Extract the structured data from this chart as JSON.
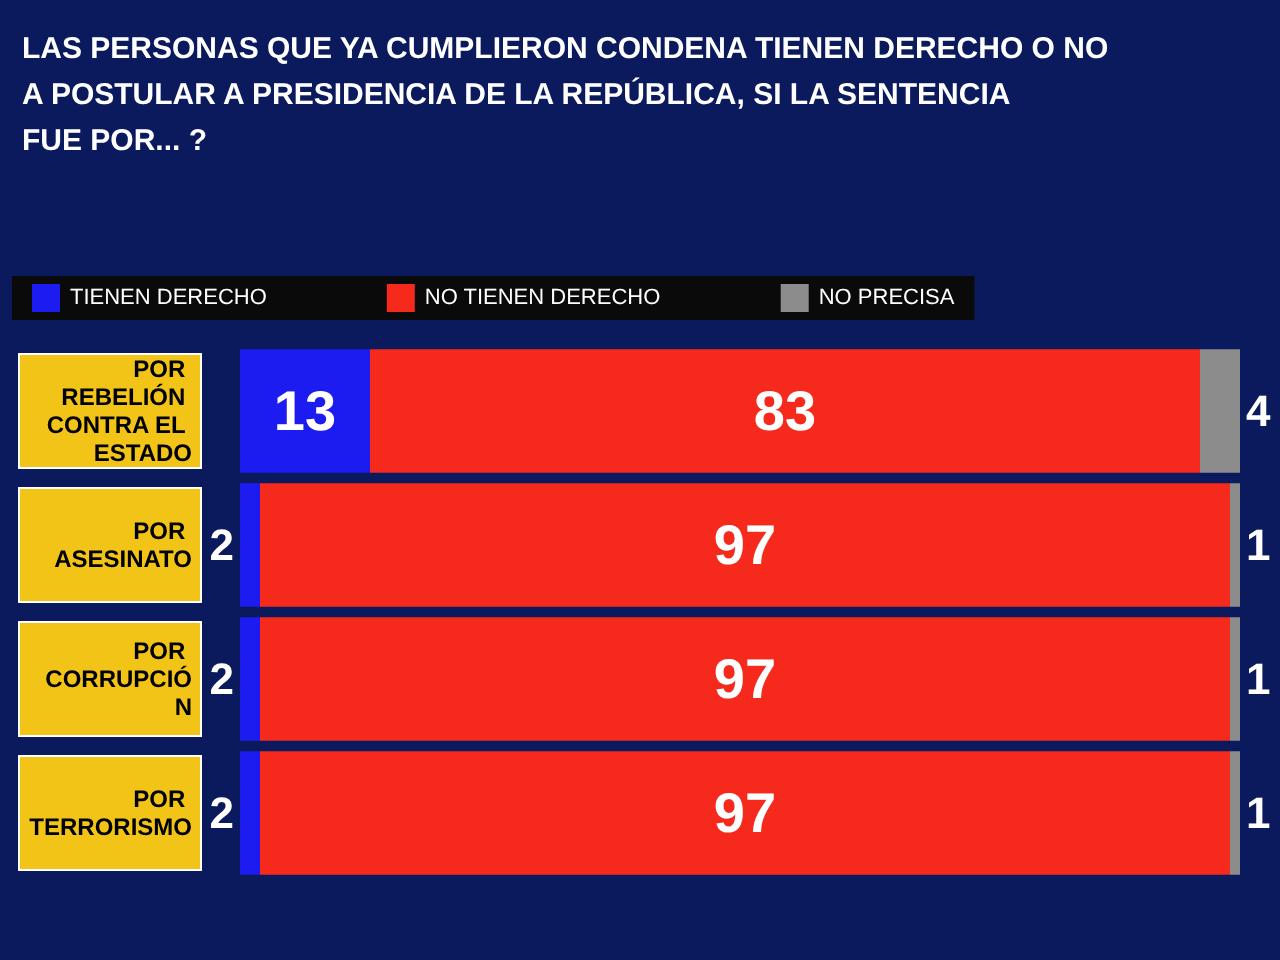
{
  "chart_data": {
    "type": "bar",
    "orientation": "horizontal",
    "stacked": true,
    "title": "LAS PERSONAS QUE YA CUMPLIERON CONDENA TIENEN DERECHO O NO A POSTULAR A PRESIDENCIA DE LA REPÚBLICA, SI LA SENTENCIA FUE POR... ?",
    "categories": [
      "POR REBELIÓN CONTRA EL ESTADO",
      "POR ASESINATO",
      "POR CORRUPCIÓN",
      "POR TERRORISMO"
    ],
    "series": [
      {
        "name": "TIENEN DERECHO",
        "color": "#1c1cf0",
        "values": [
          13,
          2,
          2,
          2
        ]
      },
      {
        "name": "NO TIENEN DERECHO",
        "color": "#f52a1c",
        "values": [
          83,
          97,
          97,
          97
        ]
      },
      {
        "name": "NO PRECISA",
        "color": "#8c8c8c",
        "values": [
          4,
          1,
          1,
          1
        ]
      }
    ],
    "xlim": [
      0,
      100
    ],
    "tick_labels": "y",
    "data_labels": true,
    "legend": "top left"
  }
}
